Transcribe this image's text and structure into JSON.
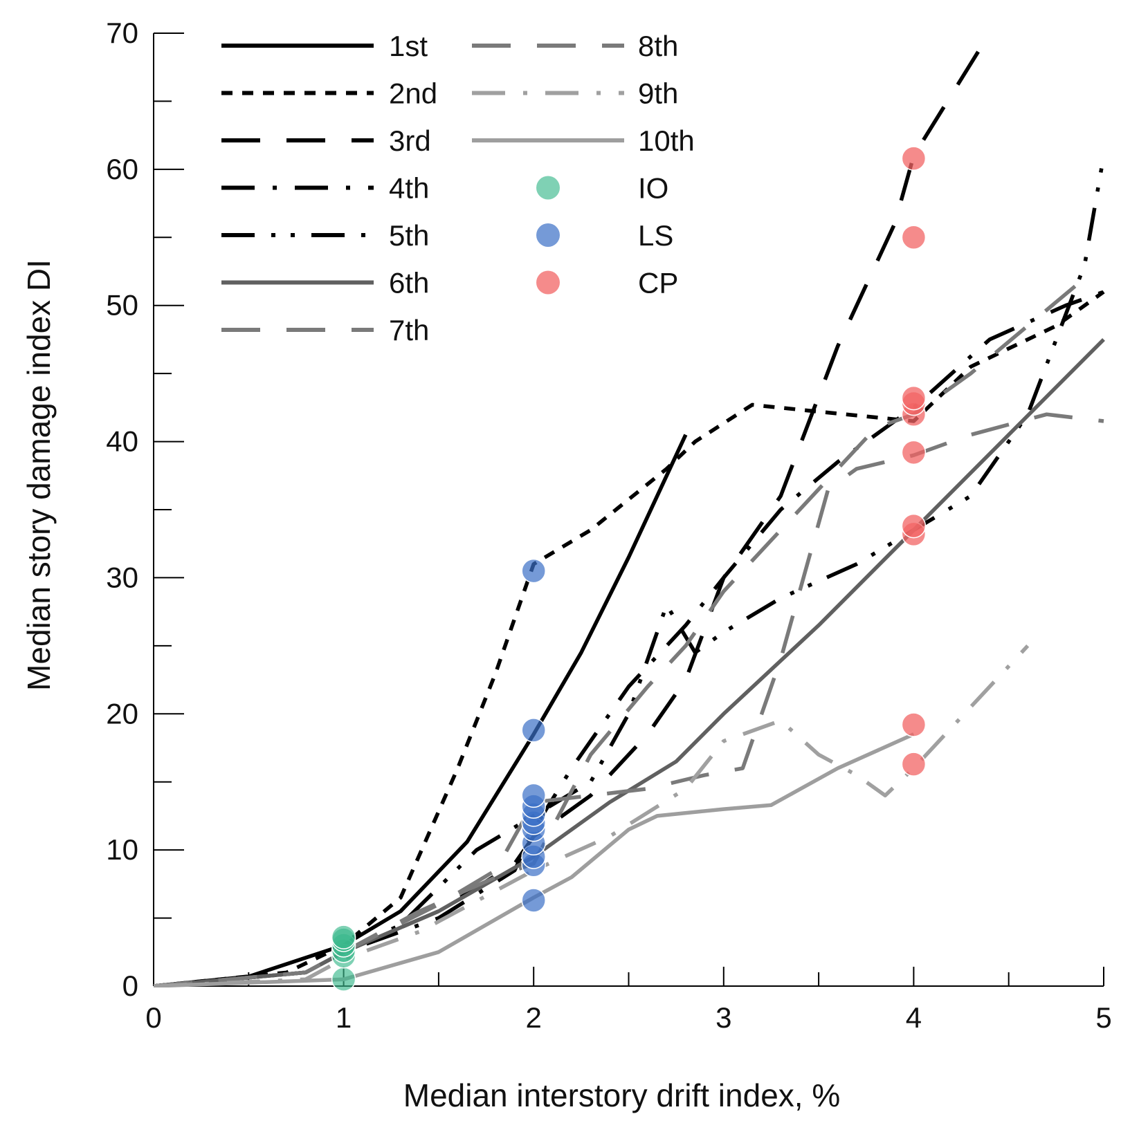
{
  "chart_data": {
    "type": "line",
    "title": "",
    "xlabel": "Median interstory drift index, %",
    "ylabel": "Median story damage index DI",
    "xlim": [
      0,
      5
    ],
    "ylim": [
      0,
      70
    ],
    "xticks": [
      0,
      1,
      2,
      3,
      4,
      5
    ],
    "yticks": [
      0,
      10,
      20,
      30,
      40,
      50,
      60,
      70
    ],
    "grid": false,
    "legend_position": "top-left",
    "series": [
      {
        "name": "1st",
        "color": "#000000",
        "dash": "solid",
        "points": [
          [
            0,
            0
          ],
          [
            0.5,
            0.7
          ],
          [
            1.0,
            3.0
          ],
          [
            1.3,
            5.5
          ],
          [
            1.65,
            10.6
          ],
          [
            2.0,
            18.5
          ],
          [
            2.25,
            24.5
          ],
          [
            2.5,
            31.5
          ],
          [
            2.8,
            40.5
          ]
        ]
      },
      {
        "name": "2nd",
        "color": "#000000",
        "dash": "short-dash",
        "points": [
          [
            0,
            0
          ],
          [
            0.7,
            1.0
          ],
          [
            1.0,
            3.0
          ],
          [
            1.3,
            6.5
          ],
          [
            1.6,
            16.0
          ],
          [
            1.8,
            23.0
          ],
          [
            2.0,
            31.0
          ],
          [
            2.3,
            33.5
          ],
          [
            2.7,
            38.0
          ],
          [
            2.85,
            40.0
          ],
          [
            3.15,
            42.7
          ],
          [
            3.5,
            42.2
          ],
          [
            4.0,
            41.5
          ],
          [
            4.3,
            45.5
          ],
          [
            4.75,
            48.5
          ],
          [
            5.0,
            51.0
          ]
        ]
      },
      {
        "name": "3rd",
        "color": "#000000",
        "dash": "long-dash",
        "points": [
          [
            0,
            0
          ],
          [
            0.8,
            1.0
          ],
          [
            1.0,
            2.5
          ],
          [
            1.5,
            5.5
          ],
          [
            1.9,
            9.0
          ],
          [
            2.0,
            11.0
          ],
          [
            2.3,
            14.0
          ],
          [
            2.6,
            18.5
          ],
          [
            2.8,
            22.5
          ],
          [
            3.0,
            30.0
          ],
          [
            3.3,
            36.0
          ],
          [
            3.6,
            47.0
          ],
          [
            3.9,
            56.0
          ],
          [
            4.0,
            61.0
          ],
          [
            4.4,
            70.0
          ]
        ]
      },
      {
        "name": "4th",
        "color": "#000000",
        "dash": "dash-dot",
        "points": [
          [
            0,
            0
          ],
          [
            0.8,
            1.0
          ],
          [
            1.0,
            2.5
          ],
          [
            1.5,
            5.0
          ],
          [
            1.9,
            8.5
          ],
          [
            2.0,
            11.5
          ],
          [
            2.2,
            16.0
          ],
          [
            2.5,
            22.0
          ],
          [
            2.8,
            26.5
          ],
          [
            3.0,
            30.0
          ],
          [
            3.3,
            35.0
          ],
          [
            3.6,
            38.5
          ],
          [
            4.0,
            42.5
          ],
          [
            4.4,
            47.5
          ],
          [
            4.8,
            50.0
          ],
          [
            5.0,
            51.0
          ]
        ]
      },
      {
        "name": "5th",
        "color": "#000000",
        "dash": "dash-dot-dot",
        "points": [
          [
            0,
            0
          ],
          [
            0.8,
            1.0
          ],
          [
            1.0,
            2.5
          ],
          [
            1.3,
            4.5
          ],
          [
            1.7,
            10.0
          ],
          [
            2.0,
            12.5
          ],
          [
            2.3,
            15.0
          ],
          [
            2.5,
            20.0
          ],
          [
            2.7,
            28.0
          ],
          [
            2.85,
            24.5
          ],
          [
            3.0,
            26.0
          ],
          [
            3.3,
            28.5
          ],
          [
            3.7,
            31.0
          ],
          [
            4.0,
            33.5
          ],
          [
            4.3,
            36.0
          ],
          [
            4.6,
            42.0
          ],
          [
            4.9,
            53.0
          ],
          [
            5.0,
            61.0
          ]
        ]
      },
      {
        "name": "6th",
        "color": "#606060",
        "dash": "solid",
        "points": [
          [
            0,
            0
          ],
          [
            0.8,
            1.0
          ],
          [
            1.0,
            2.5
          ],
          [
            1.5,
            5.5
          ],
          [
            2.0,
            9.5
          ],
          [
            2.4,
            13.5
          ],
          [
            2.75,
            16.5
          ],
          [
            3.0,
            20.0
          ],
          [
            3.5,
            26.5
          ],
          [
            4.0,
            33.5
          ],
          [
            4.5,
            40.5
          ],
          [
            5.0,
            47.5
          ]
        ]
      },
      {
        "name": "7th",
        "color": "#7a7a7a",
        "dash": "long-dash",
        "points": [
          [
            0,
            0
          ],
          [
            0.8,
            1.0
          ],
          [
            1.0,
            2.5
          ],
          [
            1.5,
            6.0
          ],
          [
            1.8,
            8.5
          ],
          [
            2.0,
            13.5
          ],
          [
            2.3,
            14.0
          ],
          [
            2.6,
            14.5
          ],
          [
            2.9,
            15.5
          ],
          [
            3.1,
            16.0
          ],
          [
            3.3,
            24.0
          ],
          [
            3.55,
            36.5
          ],
          [
            3.7,
            38.0
          ],
          [
            4.0,
            39.0
          ],
          [
            4.3,
            40.5
          ],
          [
            4.7,
            42.0
          ],
          [
            5.0,
            41.5
          ]
        ]
      },
      {
        "name": "8th",
        "color": "#7a7a7a",
        "dash": "long-dash",
        "points": [
          [
            0,
            0
          ],
          [
            0.8,
            1.0
          ],
          [
            1.0,
            2.5
          ],
          [
            1.4,
            5.5
          ],
          [
            1.8,
            8.0
          ],
          [
            2.0,
            9.0
          ],
          [
            2.3,
            17.0
          ],
          [
            2.6,
            22.0
          ],
          [
            2.8,
            25.0
          ],
          [
            3.0,
            29.0
          ],
          [
            3.3,
            33.5
          ],
          [
            3.6,
            38.0
          ],
          [
            3.8,
            41.0
          ],
          [
            4.0,
            42.0
          ],
          [
            4.3,
            45.0
          ],
          [
            4.6,
            48.5
          ],
          [
            4.9,
            52.0
          ]
        ]
      },
      {
        "name": "9th",
        "color": "#a0a0a0",
        "dash": "dash-dot",
        "points": [
          [
            0,
            0
          ],
          [
            0.8,
            0.5
          ],
          [
            1.0,
            2.0
          ],
          [
            1.4,
            4.0
          ],
          [
            1.8,
            7.0
          ],
          [
            2.0,
            8.5
          ],
          [
            2.4,
            11.0
          ],
          [
            2.8,
            14.5
          ],
          [
            3.0,
            18.0
          ],
          [
            3.3,
            19.5
          ],
          [
            3.5,
            17.0
          ],
          [
            3.7,
            15.5
          ],
          [
            3.85,
            14.0
          ],
          [
            4.0,
            16.0
          ],
          [
            4.3,
            20.5
          ],
          [
            4.6,
            25.0
          ]
        ]
      },
      {
        "name": "10th",
        "color": "#9e9e9e",
        "dash": "solid",
        "points": [
          [
            0,
            0
          ],
          [
            1.0,
            0.5
          ],
          [
            1.5,
            2.5
          ],
          [
            2.0,
            6.5
          ],
          [
            2.2,
            8.0
          ],
          [
            2.5,
            11.5
          ],
          [
            2.65,
            12.5
          ],
          [
            3.0,
            13.0
          ],
          [
            3.25,
            13.3
          ],
          [
            3.6,
            16.0
          ],
          [
            4.0,
            18.5
          ]
        ]
      }
    ],
    "markers": [
      {
        "name": "IO",
        "color": "#3bb88c",
        "fill_opacity": 0.65,
        "points": [
          [
            1,
            0.5
          ],
          [
            1,
            2.2
          ],
          [
            1,
            2.6
          ],
          [
            1,
            3.0
          ],
          [
            1,
            3.4
          ],
          [
            1,
            3.6
          ]
        ]
      },
      {
        "name": "LS",
        "color": "#3a6fc6",
        "fill_opacity": 0.7,
        "points": [
          [
            2,
            6.3
          ],
          [
            2,
            8.9
          ],
          [
            2,
            9.5
          ],
          [
            2,
            10.5
          ],
          [
            2,
            11.5
          ],
          [
            2,
            12.0
          ],
          [
            2,
            12.6
          ],
          [
            2,
            13.2
          ],
          [
            2,
            14.0
          ],
          [
            2,
            18.8
          ],
          [
            2,
            30.5
          ]
        ]
      },
      {
        "name": "CP",
        "color": "#f26464",
        "fill_opacity": 0.75,
        "points": [
          [
            4,
            16.3
          ],
          [
            4,
            19.2
          ],
          [
            4,
            33.2
          ],
          [
            4,
            33.8
          ],
          [
            4,
            39.2
          ],
          [
            4,
            42.0
          ],
          [
            4,
            42.8
          ],
          [
            4,
            43.2
          ],
          [
            4,
            55.0
          ],
          [
            4,
            60.8
          ]
        ]
      }
    ]
  }
}
